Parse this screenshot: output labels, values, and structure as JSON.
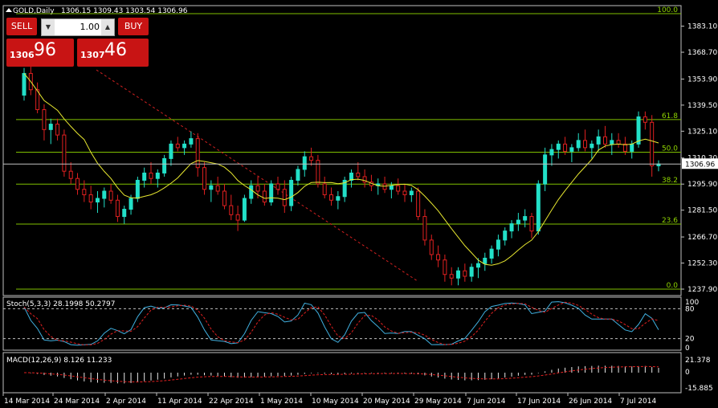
{
  "header": {
    "symbol": "GOLD,Daily",
    "ohlc": "1306.15 1309.43 1303.54 1306.96"
  },
  "trade_panel": {
    "sell_label": "SELL",
    "buy_label": "BUY",
    "lot": "1.00",
    "bid_small": "1306",
    "bid_big": "96",
    "ask_small": "1307",
    "ask_big": "46",
    "color": "#c81414"
  },
  "indicators": {
    "stoch_label": "Stoch(5,3,3) 28.1998 50.2797",
    "macd_label": "MACD(12,26,9) 8.126 11.233"
  },
  "chart_data": {
    "type": "candlestick",
    "title": "GOLD,Daily",
    "ylim": [
      1237.9,
      1390
    ],
    "price_ticks": [
      "1383.10",
      "1368.70",
      "1353.90",
      "1339.50",
      "1325.10",
      "1310.30",
      "1295.90",
      "1281.50",
      "1266.70",
      "1252.30",
      "1237.90"
    ],
    "current_price": "1306.96",
    "x_labels": [
      "14 Mar 2014",
      "24 Mar 2014",
      "2 Apr 2014",
      "11 Apr 2014",
      "22 Apr 2014",
      "1 May 2014",
      "10 May 2014",
      "20 May 2014",
      "29 May 2014",
      "7 Jun 2014",
      "17 Jun 2014",
      "26 Jun 2014",
      "7 Jul 2014"
    ],
    "fib_levels": [
      {
        "label": "100.0",
        "price": 1390
      },
      {
        "label": "61.8",
        "price": 1331.5
      },
      {
        "label": "50.0",
        "price": 1313.5
      },
      {
        "label": "38.2",
        "price": 1295.9
      },
      {
        "label": "23.6",
        "price": 1273.8
      },
      {
        "label": "0.0",
        "price": 1237.9
      }
    ],
    "candles": [
      [
        1345,
        1360,
        1342,
        1357
      ],
      [
        1357,
        1362,
        1345,
        1348
      ],
      [
        1348,
        1352,
        1335,
        1337
      ],
      [
        1337,
        1340,
        1320,
        1326
      ],
      [
        1326,
        1332,
        1318,
        1329
      ],
      [
        1329,
        1332,
        1320,
        1323
      ],
      [
        1323,
        1326,
        1300,
        1303
      ],
      [
        1303,
        1308,
        1296,
        1299
      ],
      [
        1299,
        1302,
        1290,
        1293
      ],
      [
        1293,
        1298,
        1286,
        1290
      ],
      [
        1290,
        1295,
        1282,
        1286
      ],
      [
        1286,
        1292,
        1280,
        1288
      ],
      [
        1288,
        1294,
        1283,
        1292
      ],
      [
        1292,
        1296,
        1285,
        1287
      ],
      [
        1287,
        1290,
        1275,
        1278
      ],
      [
        1278,
        1284,
        1274,
        1282
      ],
      [
        1282,
        1290,
        1279,
        1288
      ],
      [
        1288,
        1300,
        1286,
        1298
      ],
      [
        1298,
        1305,
        1294,
        1302
      ],
      [
        1302,
        1308,
        1296,
        1299
      ],
      [
        1299,
        1304,
        1294,
        1302
      ],
      [
        1302,
        1312,
        1300,
        1310
      ],
      [
        1310,
        1320,
        1306,
        1318
      ],
      [
        1318,
        1322,
        1314,
        1316
      ],
      [
        1316,
        1320,
        1312,
        1318
      ],
      [
        1318,
        1325,
        1316,
        1321
      ],
      [
        1321,
        1324,
        1300,
        1305
      ],
      [
        1305,
        1308,
        1290,
        1293
      ],
      [
        1293,
        1298,
        1286,
        1295
      ],
      [
        1295,
        1300,
        1290,
        1292
      ],
      [
        1292,
        1296,
        1282,
        1284
      ],
      [
        1284,
        1290,
        1276,
        1279
      ],
      [
        1279,
        1284,
        1270,
        1276
      ],
      [
        1276,
        1290,
        1275,
        1288
      ],
      [
        1288,
        1298,
        1285,
        1295
      ],
      [
        1295,
        1300,
        1288,
        1292
      ],
      [
        1292,
        1296,
        1284,
        1286
      ],
      [
        1286,
        1298,
        1284,
        1296
      ],
      [
        1296,
        1300,
        1290,
        1293
      ],
      [
        1293,
        1298,
        1280,
        1284
      ],
      [
        1284,
        1300,
        1281,
        1298
      ],
      [
        1298,
        1306,
        1295,
        1304
      ],
      [
        1304,
        1314,
        1300,
        1311
      ],
      [
        1311,
        1316,
        1306,
        1309
      ],
      [
        1309,
        1312,
        1294,
        1296
      ],
      [
        1296,
        1300,
        1288,
        1290
      ],
      [
        1290,
        1294,
        1284,
        1287
      ],
      [
        1287,
        1292,
        1282,
        1289
      ],
      [
        1289,
        1300,
        1286,
        1298
      ],
      [
        1298,
        1304,
        1294,
        1302
      ],
      [
        1302,
        1308,
        1298,
        1300
      ],
      [
        1300,
        1304,
        1294,
        1297
      ],
      [
        1297,
        1301,
        1292,
        1295
      ],
      [
        1295,
        1299,
        1290,
        1296
      ],
      [
        1296,
        1300,
        1291,
        1293
      ],
      [
        1293,
        1297,
        1288,
        1295
      ],
      [
        1295,
        1299,
        1290,
        1292
      ],
      [
        1292,
        1296,
        1286,
        1290
      ],
      [
        1290,
        1294,
        1286,
        1292
      ],
      [
        1292,
        1294,
        1276,
        1278
      ],
      [
        1278,
        1282,
        1262,
        1265
      ],
      [
        1265,
        1268,
        1254,
        1257
      ],
      [
        1257,
        1262,
        1250,
        1254
      ],
      [
        1254,
        1257,
        1242,
        1246
      ],
      [
        1246,
        1250,
        1240,
        1244
      ],
      [
        1244,
        1250,
        1240,
        1248
      ],
      [
        1248,
        1252,
        1242,
        1245
      ],
      [
        1245,
        1252,
        1242,
        1250
      ],
      [
        1250,
        1255,
        1244,
        1252
      ],
      [
        1252,
        1258,
        1248,
        1255
      ],
      [
        1255,
        1262,
        1252,
        1260
      ],
      [
        1260,
        1268,
        1256,
        1265
      ],
      [
        1265,
        1272,
        1262,
        1270
      ],
      [
        1270,
        1276,
        1266,
        1274
      ],
      [
        1274,
        1280,
        1270,
        1276
      ],
      [
        1276,
        1282,
        1272,
        1278
      ],
      [
        1278,
        1280,
        1266,
        1270
      ],
      [
        1270,
        1298,
        1268,
        1296
      ],
      [
        1296,
        1316,
        1292,
        1312
      ],
      [
        1312,
        1318,
        1306,
        1315
      ],
      [
        1315,
        1320,
        1310,
        1318
      ],
      [
        1318,
        1322,
        1312,
        1314
      ],
      [
        1314,
        1318,
        1308,
        1316
      ],
      [
        1316,
        1324,
        1314,
        1320
      ],
      [
        1320,
        1326,
        1314,
        1316
      ],
      [
        1316,
        1320,
        1310,
        1318
      ],
      [
        1318,
        1326,
        1314,
        1322
      ],
      [
        1322,
        1328,
        1316,
        1318
      ],
      [
        1318,
        1324,
        1312,
        1320
      ],
      [
        1320,
        1324,
        1316,
        1318
      ],
      [
        1318,
        1322,
        1312,
        1314
      ],
      [
        1314,
        1320,
        1310,
        1318
      ],
      [
        1318,
        1336,
        1316,
        1333
      ],
      [
        1333,
        1336,
        1326,
        1330
      ],
      [
        1330,
        1334,
        1300,
        1306
      ],
      [
        1306,
        1309,
        1303,
        1307
      ]
    ]
  }
}
